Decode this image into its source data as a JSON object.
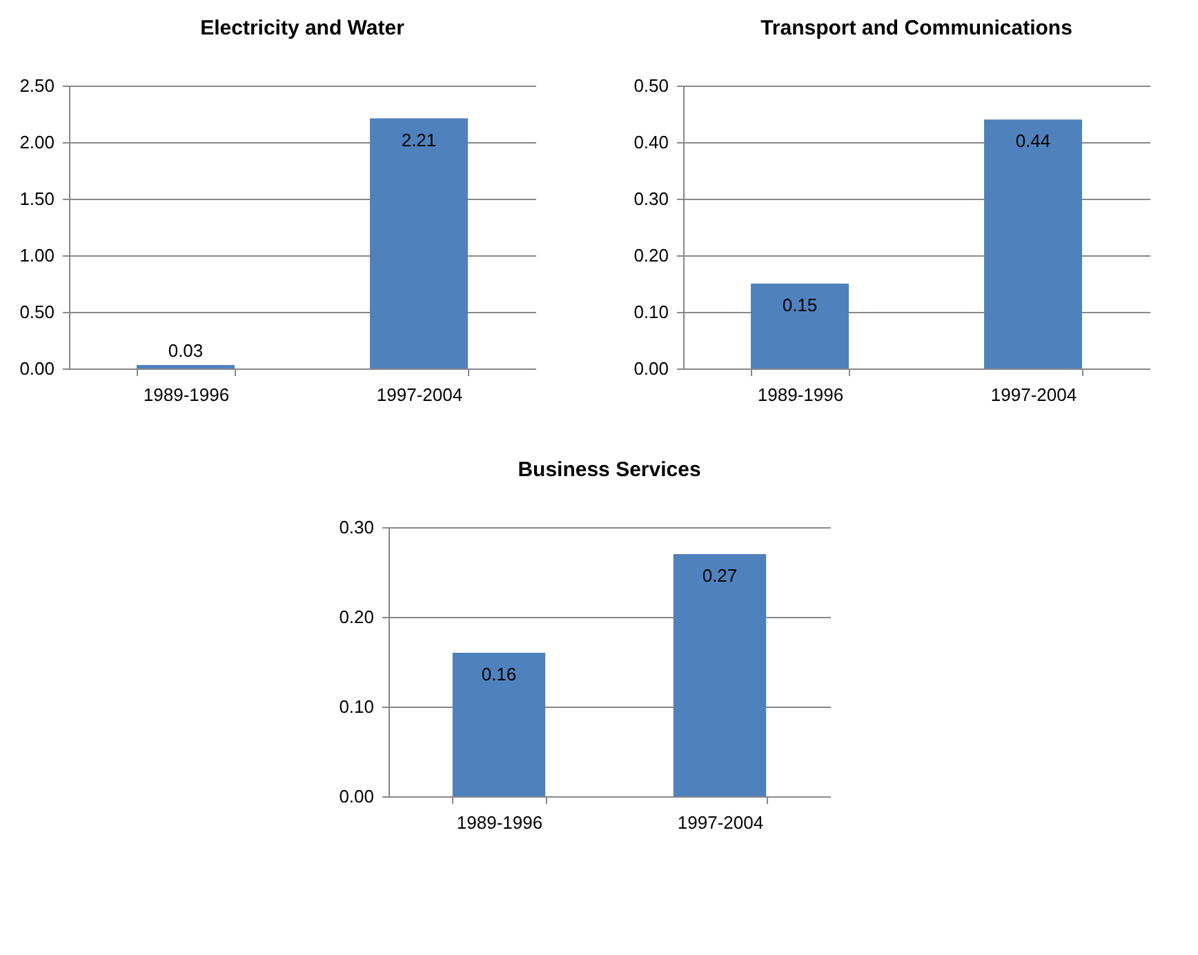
{
  "chart_data": [
    {
      "type": "bar",
      "title": "Electricity and Water",
      "categories": [
        "1989-1996",
        "1997-2004"
      ],
      "values": [
        0.03,
        2.21
      ],
      "color": "#4f81bd",
      "ylim": [
        0,
        2.5
      ],
      "yticks": [
        {
          "value": 0,
          "label": "0.00"
        },
        {
          "value": 0.5,
          "label": "0.50"
        },
        {
          "value": 1,
          "label": "1.00"
        },
        {
          "value": 1.5,
          "label": "1.50"
        },
        {
          "value": 2,
          "label": "2.00"
        },
        {
          "value": 2.5,
          "label": "2.50"
        }
      ],
      "grid": "y",
      "data_labels": true
    },
    {
      "type": "bar",
      "title": "Transport and Communications",
      "categories": [
        "1989-1996",
        "1997-2004"
      ],
      "values": [
        0.15,
        0.44
      ],
      "color": "#4f81bd",
      "ylim": [
        0,
        0.5
      ],
      "yticks": [
        {
          "value": 0,
          "label": "0.00"
        },
        {
          "value": 0.1,
          "label": "0.10"
        },
        {
          "value": 0.2,
          "label": "0.20"
        },
        {
          "value": 0.3,
          "label": "0.30"
        },
        {
          "value": 0.4,
          "label": "0.40"
        },
        {
          "value": 0.5,
          "label": "0.50"
        }
      ],
      "grid": "y",
      "data_labels": true
    },
    {
      "type": "bar",
      "title": "Business Services",
      "categories": [
        "1989-1996",
        "1997-2004"
      ],
      "values": [
        0.16,
        0.27
      ],
      "color": "#4f81bd",
      "ylim": [
        0,
        0.3
      ],
      "yticks": [
        {
          "value": 0,
          "label": "0.00"
        },
        {
          "value": 0.1,
          "label": "0.10"
        },
        {
          "value": 0.2,
          "label": "0.20"
        },
        {
          "value": 0.3,
          "label": "0.30"
        }
      ],
      "grid": "y",
      "data_labels": true
    }
  ]
}
